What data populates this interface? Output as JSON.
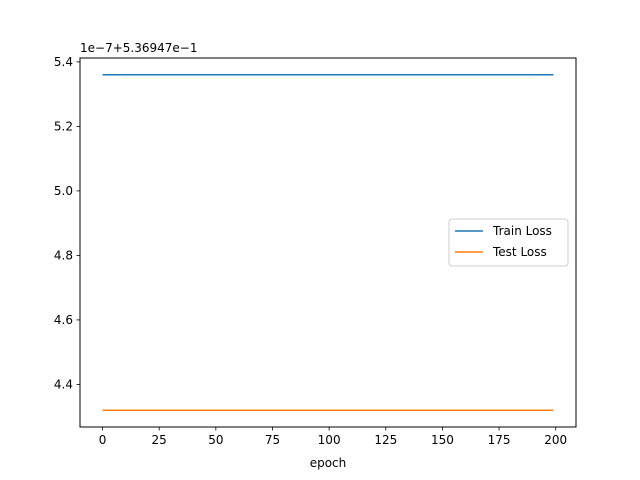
{
  "chart_data": {
    "type": "line",
    "title": "",
    "xlabel": "epoch",
    "ylabel": "",
    "y_offset_label": "1e−7+5.36947e−1",
    "xlim": [
      -9.95,
      208.95
    ],
    "ylim": [
      4.268,
      5.412
    ],
    "x_ticks": [
      0,
      25,
      50,
      75,
      100,
      125,
      150,
      175,
      200
    ],
    "x_tick_labels": [
      "0",
      "25",
      "50",
      "75",
      "100",
      "125",
      "150",
      "175",
      "200"
    ],
    "y_ticks": [
      4.4,
      4.6,
      4.8,
      5.0,
      5.2,
      5.4
    ],
    "y_tick_labels": [
      "4.4",
      "4.6",
      "4.8",
      "5.0",
      "5.2",
      "5.4"
    ],
    "grid": false,
    "legend_position": "center-right",
    "series": [
      {
        "name": "Train Loss",
        "color": "#1f77b4",
        "x": [
          0,
          199
        ],
        "y": [
          5.36,
          5.36
        ]
      },
      {
        "name": "Test Loss",
        "color": "#ff7f0e",
        "x": [
          0,
          199
        ],
        "y": [
          4.32,
          4.32
        ]
      }
    ]
  }
}
